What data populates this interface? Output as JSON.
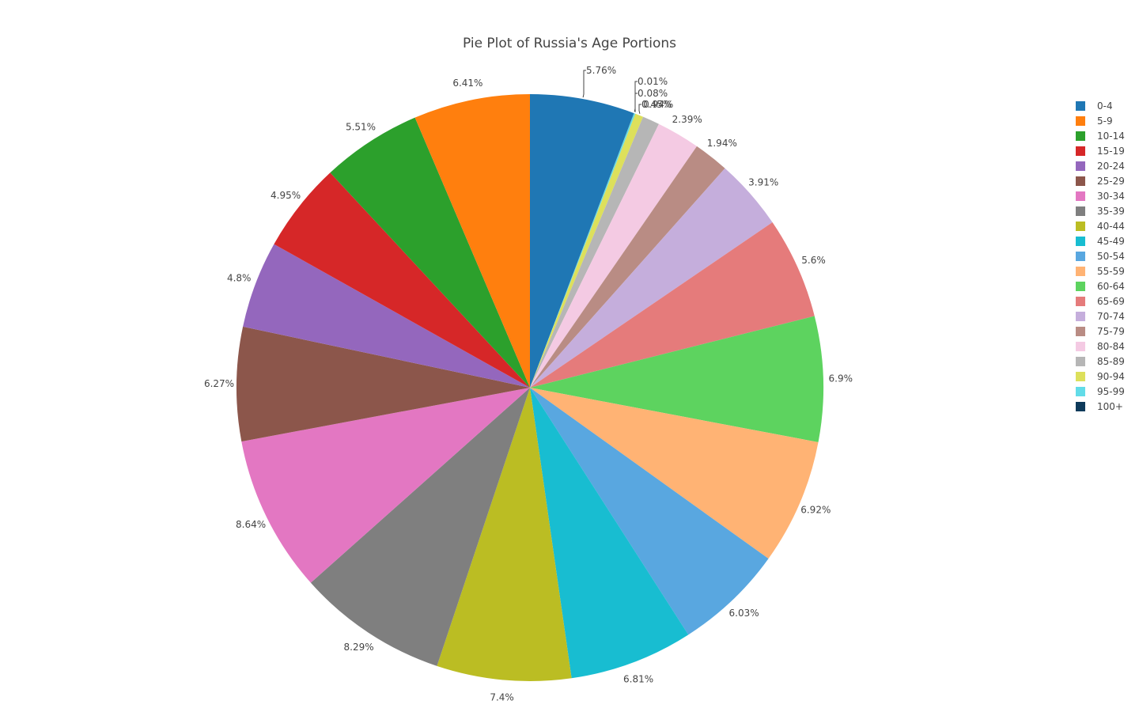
{
  "chart_data": {
    "type": "pie",
    "title": "Pie Plot of Russia's Age Portions",
    "legend_position": "right",
    "direction": "clockwise",
    "start": "top",
    "categories": [
      "0-4",
      "5-9",
      "10-14",
      "15-19",
      "20-24",
      "25-29",
      "30-34",
      "35-39",
      "40-44",
      "45-49",
      "50-54",
      "55-59",
      "60-64",
      "65-69",
      "70-74",
      "75-79",
      "80-84",
      "85-89",
      "90-94",
      "95-99",
      "100+"
    ],
    "values": [
      5.76,
      0.01,
      0.08,
      0.45,
      0.94,
      2.39,
      1.94,
      3.91,
      5.6,
      6.9,
      6.92,
      6.03,
      6.81,
      7.4,
      8.29,
      8.64,
      6.27,
      4.8,
      4.95,
      5.51,
      6.41
    ],
    "labels": [
      "5.76%",
      "0.01%",
      "0.08%",
      "0.45%",
      "0.94%",
      "2.39%",
      "1.94%",
      "3.91%",
      "5.6%",
      "6.9%",
      "6.92%",
      "6.03%",
      "6.81%",
      "7.4%",
      "8.29%",
      "8.64%",
      "6.27%",
      "4.8%",
      "4.95%",
      "5.51%",
      "6.41%"
    ],
    "colors": [
      "#1f77b4",
      "#0e3a5a",
      "#62dce8",
      "#dde05b",
      "#b6b6b6",
      "#f4cae3",
      "#b98c84",
      "#c5aedc",
      "#e57b7b",
      "#5dd35f",
      "#ffb374",
      "#59a7e0",
      "#18bdd1",
      "#bbbd23",
      "#7f7f7f",
      "#e377c2",
      "#8c564b",
      "#9467bd",
      "#d62728",
      "#2ca02c",
      "#ff7f0e"
    ],
    "legend": [
      {
        "label": "0-4",
        "color": "#1f77b4"
      },
      {
        "label": "5-9",
        "color": "#ff7f0e"
      },
      {
        "label": "10-14",
        "color": "#2ca02c"
      },
      {
        "label": "15-19",
        "color": "#d62728"
      },
      {
        "label": "20-24",
        "color": "#9467bd"
      },
      {
        "label": "25-29",
        "color": "#8c564b"
      },
      {
        "label": "30-34",
        "color": "#e377c2"
      },
      {
        "label": "35-39",
        "color": "#7f7f7f"
      },
      {
        "label": "40-44",
        "color": "#bbbd23"
      },
      {
        "label": "45-49",
        "color": "#18bdd1"
      },
      {
        "label": "50-54",
        "color": "#59a7e0"
      },
      {
        "label": "55-59",
        "color": "#ffb374"
      },
      {
        "label": "60-64",
        "color": "#5dd35f"
      },
      {
        "label": "65-69",
        "color": "#e57b7b"
      },
      {
        "label": "70-74",
        "color": "#c5aedc"
      },
      {
        "label": "75-79",
        "color": "#b98c84"
      },
      {
        "label": "80-84",
        "color": "#f4cae3"
      },
      {
        "label": "85-89",
        "color": "#b6b6b6"
      },
      {
        "label": "90-94",
        "color": "#dde05b"
      },
      {
        "label": "95-99",
        "color": "#62dce8"
      },
      {
        "label": "100+",
        "color": "#0e3a5a"
      }
    ]
  }
}
